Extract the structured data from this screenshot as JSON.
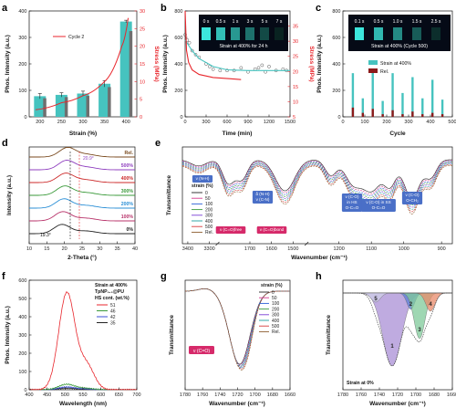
{
  "panels": {
    "a": {
      "label": "a",
      "type": "bar",
      "xlabel": "Strain (%)",
      "ylabel": "Phos. Intensity (a.u.)",
      "y2label": "Stress (MPa)",
      "categories": [
        "200",
        "250",
        "300",
        "350",
        "400"
      ],
      "values": [
        78,
        83,
        88,
        125,
        360
      ],
      "errors": [
        10,
        8,
        9,
        12,
        5
      ],
      "ylim": [
        0,
        400
      ],
      "yticks": [
        "0",
        "100",
        "200",
        "300",
        "400"
      ],
      "y2lim": [
        0,
        30
      ],
      "y2ticks": [
        "0",
        "5",
        "10",
        "15",
        "20",
        "25",
        "30"
      ],
      "stress_curve": [
        [
          190,
          2
        ],
        [
          250,
          4
        ],
        [
          300,
          6
        ],
        [
          350,
          10
        ],
        [
          390,
          20
        ],
        [
          405,
          28
        ]
      ],
      "legend": "Cycle 2",
      "colors": {
        "bar": "#46c3bf",
        "curve": "#e8262c"
      }
    },
    "b": {
      "label": "b",
      "type": "scatter-line",
      "xlabel": "Time (min)",
      "ylabel": "Phos. Intensity (a.u.)",
      "y2label": "Stress (MPa)",
      "xlim": [
        0,
        1500
      ],
      "xticks": [
        "0",
        "300",
        "600",
        "900",
        "1200",
        "1500"
      ],
      "ylim": [
        0,
        800
      ],
      "yticks": [
        "0",
        "200",
        "400",
        "600",
        "800"
      ],
      "y2lim": [
        0,
        35
      ],
      "y2ticks": [
        "5",
        "10",
        "15",
        "20",
        "25",
        "30",
        "35"
      ],
      "points": [
        [
          0,
          620
        ],
        [
          30,
          580
        ],
        [
          60,
          560
        ],
        [
          100,
          500
        ],
        [
          150,
          470
        ],
        [
          200,
          450
        ],
        [
          300,
          400
        ],
        [
          350,
          380
        ],
        [
          400,
          360
        ],
        [
          500,
          350
        ],
        [
          600,
          350
        ],
        [
          700,
          350
        ],
        [
          800,
          370
        ],
        [
          900,
          340
        ],
        [
          1000,
          360
        ],
        [
          1050,
          370
        ],
        [
          1100,
          390
        ],
        [
          1150,
          340
        ],
        [
          1200,
          380
        ],
        [
          1300,
          350
        ],
        [
          1400,
          360
        ],
        [
          1450,
          350
        ]
      ],
      "fit": [
        [
          0,
          580
        ],
        [
          100,
          500
        ],
        [
          200,
          440
        ],
        [
          400,
          380
        ],
        [
          600,
          355
        ],
        [
          900,
          350
        ],
        [
          1500,
          350
        ]
      ],
      "stress": [
        [
          0,
          35
        ],
        [
          20,
          22
        ],
        [
          50,
          18
        ],
        [
          100,
          15.5
        ],
        [
          200,
          14
        ],
        [
          400,
          13
        ],
        [
          700,
          12.5
        ],
        [
          800,
          12.3
        ]
      ],
      "inset_times": [
        "0 s",
        "0.5 s",
        "1 s",
        "3 s",
        "5 s",
        "7 s"
      ],
      "inset_caption": "Strain at 400% for 24 h"
    },
    "c": {
      "label": "c",
      "type": "bar-series",
      "xlabel": "Cycle",
      "ylabel": "Phos. Intensity (a.u.)",
      "xlim": [
        0,
        500
      ],
      "xticks": [
        "0",
        "100",
        "200",
        "300",
        "400",
        "500"
      ],
      "ylim": [
        0,
        800
      ],
      "yticks": [
        "0",
        "200",
        "400",
        "600",
        "800"
      ],
      "series": [
        {
          "name": "Strain at 400%",
          "color": "#46c3bf",
          "values": [
            330,
            140,
            350,
            120,
            330,
            180,
            300,
            140,
            280,
            130
          ]
        },
        {
          "name": "Rel.",
          "color": "#8b1a1a",
          "values": [
            70,
            30,
            60,
            20,
            50,
            20,
            40,
            20,
            30,
            20
          ]
        }
      ],
      "inset_times": [
        "0.1 s",
        "0.5 s",
        "1.0 s",
        "1.5 s",
        "2.5 s"
      ],
      "inset_caption": "Strain at 400% (Cycle 500)"
    },
    "d": {
      "label": "d",
      "type": "line",
      "xlabel": "2-Theta (°)",
      "ylabel": "Intensity (a.u.)",
      "xlim": [
        10,
        40
      ],
      "xticks": [
        "10",
        "15",
        "20",
        "25",
        "30",
        "35",
        "40"
      ],
      "series": [
        "0%",
        "100%",
        "200%",
        "300%",
        "400%",
        "500%",
        "Rel."
      ],
      "colors": [
        "#222222",
        "#b8336a",
        "#2b8fd6",
        "#3a9a3a",
        "#cc2a2a",
        "#8f3fbf",
        "#7a4a1e"
      ],
      "annotations": [
        "19.3°",
        "20.9°"
      ]
    },
    "e": {
      "label": "e",
      "type": "line",
      "xlabel": "Wavenumber (cm⁻¹)",
      "ylabel": "Transmittance",
      "xticks": [
        "3400",
        "3300",
        "1700",
        "1600",
        "1500",
        "1200",
        "1100",
        "1000",
        "900"
      ],
      "legend_title": "strain (%)",
      "series": [
        "0",
        "50",
        "100",
        "200",
        "300",
        "400",
        "500",
        "Rel."
      ],
      "colors": [
        "#222222",
        "#d63a8e",
        "#2b5fd6",
        "#3a9a3a",
        "#7a3fd6",
        "#1fa0a0",
        "#d63a3a",
        "#8b5a2b"
      ],
      "bands": [
        "ν (N-H)",
        "ν (C=O)free",
        "ν (C=O)bond",
        "δ (N-H)\nν (C-N)",
        "ν (C-O)\nin HS\nO-C=O",
        "ν (C-O) in SS\nO-C=O",
        "ν (C-O)\nO-CH₂"
      ]
    },
    "f": {
      "label": "f",
      "type": "line",
      "xlabel": "Wavelength (nm)",
      "ylabel": "Phos. Intensity (a.u.)",
      "xlim": [
        400,
        700
      ],
      "xticks": [
        "400",
        "450",
        "500",
        "550",
        "600",
        "650",
        "700"
      ],
      "ylim": [
        0,
        600
      ],
      "yticks": [
        "0",
        "100",
        "200",
        "300",
        "400",
        "500",
        "600"
      ],
      "title": "Strain at 400%",
      "subtitle": "TpNP₀.₃@PU",
      "legend_title": "HS cont. (wt.%)",
      "series": [
        {
          "name": "51",
          "color": "#e8262c",
          "peak": 530
        },
        {
          "name": "46",
          "color": "#3a9a3a",
          "peak": 30
        },
        {
          "name": "42",
          "color": "#3a4fd6",
          "peak": 15
        },
        {
          "name": "35",
          "color": "#222222",
          "peak": 8
        }
      ]
    },
    "g": {
      "label": "g",
      "type": "line",
      "xlabel": "Wavenumber (cm⁻¹)",
      "ylabel": "Transmittance",
      "xticks": [
        "1780",
        "1760",
        "1740",
        "1720",
        "1700",
        "1680",
        "1660"
      ],
      "legend_title": "strain (%)",
      "series": [
        "0",
        "50",
        "100",
        "200",
        "300",
        "400",
        "500",
        "Rel."
      ],
      "colors": [
        "#222222",
        "#d63a8e",
        "#2b5fd6",
        "#3a9a3a",
        "#7a3fd6",
        "#1fa0a0",
        "#d63a3a",
        "#8b5a2b"
      ],
      "band": "ν (C=O)"
    },
    "h": {
      "label": "h",
      "type": "area",
      "xlabel": "Wavenumber (cm⁻¹)",
      "ylabel": "Transmittance",
      "xticks": [
        "1780",
        "1760",
        "1740",
        "1720",
        "1700",
        "1680",
        "1660"
      ],
      "components": [
        "1",
        "2",
        "3",
        "4",
        "5"
      ],
      "colors": [
        "#a98fd6",
        "#5b7fd6",
        "#7fc99a",
        "#e88a6a",
        "#cfcfe8"
      ],
      "caption": "Strain at 0%"
    }
  }
}
